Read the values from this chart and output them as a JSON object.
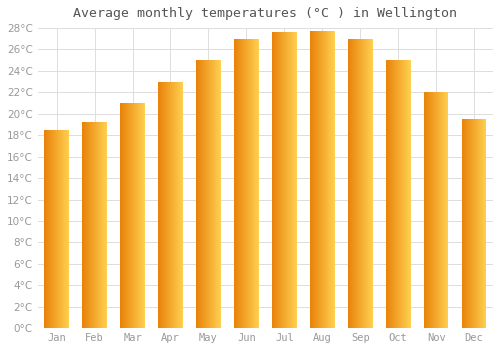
{
  "title": "Average monthly temperatures (°C ) in Wellington",
  "months": [
    "Jan",
    "Feb",
    "Mar",
    "Apr",
    "May",
    "Jun",
    "Jul",
    "Aug",
    "Sep",
    "Oct",
    "Nov",
    "Dec"
  ],
  "temperatures": [
    18.5,
    19.2,
    21.0,
    23.0,
    25.0,
    27.0,
    27.6,
    27.7,
    27.0,
    25.0,
    22.0,
    19.5
  ],
  "bar_color_left": "#E8820A",
  "bar_color_right": "#FFD050",
  "background_color": "#ffffff",
  "grid_color": "#dddddd",
  "ylim_max": 28,
  "ytick_step": 2,
  "title_fontsize": 9.5,
  "tick_fontsize": 7.5,
  "label_color": "#999999",
  "title_color": "#555555"
}
